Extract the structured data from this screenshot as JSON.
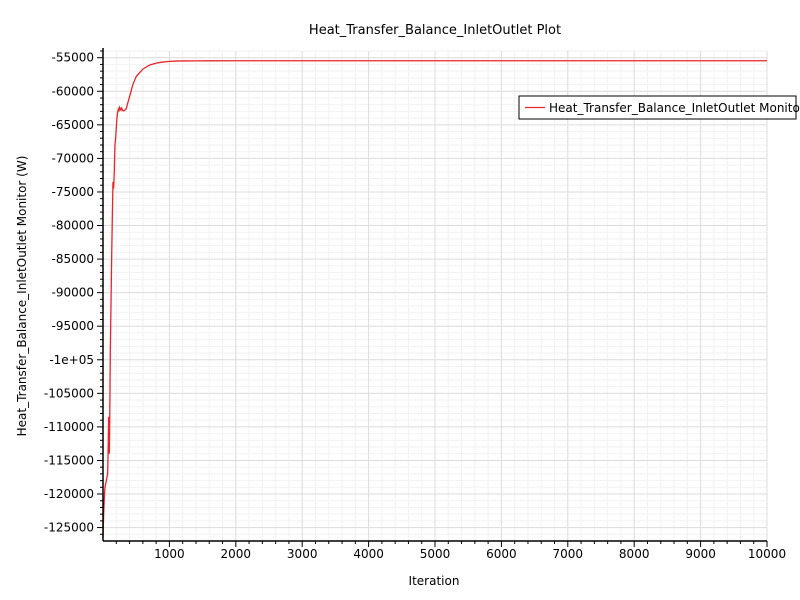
{
  "chart_data": {
    "type": "line",
    "title": "Heat_Transfer_Balance_InletOutlet Plot",
    "xlabel": "Iteration",
    "ylabel": "Heat_Transfer_Balance_InletOutlet Monitor (W)",
    "xlim": [
      0,
      10000
    ],
    "ylim": [
      -127000,
      -54000
    ],
    "x_ticks": [
      1000,
      2000,
      3000,
      4000,
      5000,
      6000,
      7000,
      8000,
      9000,
      10000
    ],
    "x_tick_labels": [
      "1000",
      "2000",
      "3000",
      "4000",
      "5000",
      "6000",
      "7000",
      "8000",
      "9000",
      "10000"
    ],
    "y_ticks": [
      -55000,
      -60000,
      -65000,
      -70000,
      -75000,
      -80000,
      -85000,
      -90000,
      -95000,
      -100000,
      -105000,
      -110000,
      -115000,
      -120000,
      -125000
    ],
    "y_tick_labels": [
      "-55000",
      "-60000",
      "-65000",
      "-70000",
      "-75000",
      "-80000",
      "-85000",
      "-90000",
      "-95000",
      "-1e+05",
      "-105000",
      "-110000",
      "-115000",
      "-120000",
      "-125000"
    ],
    "grid": true,
    "legend_position": "top-right",
    "series": [
      {
        "name": "Heat_Transfer_Balance_InletOutlet Monitor",
        "color": "#e8252a",
        "x": [
          0,
          10,
          20,
          30,
          40,
          50,
          60,
          70,
          80,
          85,
          90,
          95,
          100,
          105,
          110,
          120,
          130,
          140,
          150,
          160,
          170,
          180,
          190,
          200,
          210,
          220,
          230,
          240,
          250,
          260,
          270,
          280,
          290,
          300,
          320,
          350,
          380,
          400,
          450,
          500,
          600,
          700,
          800,
          900,
          1000,
          1100,
          1200,
          1400,
          1600,
          2000,
          3000,
          5000,
          7000,
          10000
        ],
        "y": [
          -126500,
          -123000,
          -120500,
          -119000,
          -118500,
          -118000,
          -117500,
          -117000,
          -112000,
          -108500,
          -111000,
          -114000,
          -110500,
          -105000,
          -99000,
          -92000,
          -85000,
          -79000,
          -73500,
          -74500,
          -72000,
          -68000,
          -67000,
          -65500,
          -64000,
          -63200,
          -62700,
          -63000,
          -62400,
          -62600,
          -62800,
          -62500,
          -62700,
          -62900,
          -62900,
          -62600,
          -61500,
          -60800,
          -59000,
          -57800,
          -56700,
          -56100,
          -55800,
          -55650,
          -55550,
          -55500,
          -55480,
          -55470,
          -55460,
          -55450,
          -55450,
          -55450,
          -55450,
          -55450
        ]
      }
    ]
  }
}
